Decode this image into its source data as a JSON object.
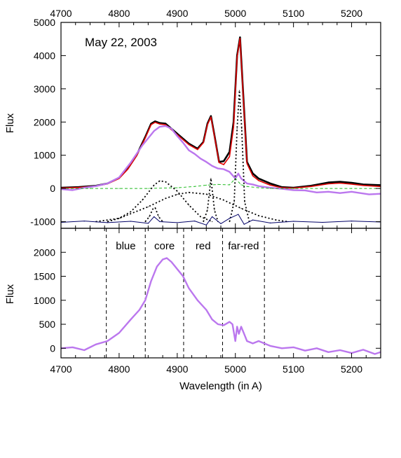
{
  "chart_data": [
    {
      "type": "line",
      "panel": "top",
      "annotation": "May 22, 2003",
      "xlabel": "",
      "ylabel": "Flux",
      "xlim": [
        4700,
        5250
      ],
      "ylim": [
        -1200,
        5000
      ],
      "xticks": [
        4700,
        4800,
        4900,
        5000,
        5100,
        5200
      ],
      "xtick_labels": [
        "4700",
        "4800",
        "4900",
        "5000",
        "5100",
        "5200"
      ],
      "yticks": [
        5000,
        4000,
        3000,
        2000,
        1000,
        0,
        -1000
      ],
      "ytick_labels": [
        "5000",
        "4000",
        "3000",
        "2000",
        "1000",
        "0",
        "-1000"
      ],
      "grid": false,
      "legend": "none",
      "series": [
        {
          "style": "observed",
          "color": "#000000",
          "x": [
            4700,
            4730,
            4760,
            4780,
            4800,
            4815,
            4830,
            4845,
            4855,
            4862,
            4870,
            4880,
            4900,
            4920,
            4935,
            4945,
            4952,
            4958,
            4964,
            4972,
            4980,
            4990,
            4997,
            5003,
            5008,
            5013,
            5020,
            5030,
            5040,
            5060,
            5080,
            5100,
            5130,
            5160,
            5180,
            5200,
            5220,
            5250
          ],
          "y": [
            20,
            40,
            80,
            150,
            320,
            600,
            1000,
            1550,
            1950,
            2020,
            1970,
            1950,
            1650,
            1350,
            1200,
            1400,
            1950,
            2180,
            1600,
            800,
            820,
            1100,
            2000,
            4000,
            4550,
            3000,
            800,
            450,
            300,
            150,
            40,
            20,
            80,
            180,
            200,
            170,
            120,
            100
          ]
        },
        {
          "style": "model-fit",
          "color": "#e00000",
          "x": [
            4700,
            4730,
            4760,
            4780,
            4800,
            4815,
            4830,
            4845,
            4855,
            4862,
            4870,
            4880,
            4900,
            4920,
            4935,
            4945,
            4952,
            4958,
            4964,
            4972,
            4980,
            4990,
            4997,
            5003,
            5008,
            5013,
            5020,
            5030,
            5040,
            5060,
            5080,
            5100,
            5130,
            5160,
            5180,
            5200,
            5220,
            5250
          ],
          "y": [
            10,
            30,
            70,
            140,
            300,
            580,
            980,
            1520,
            1920,
            1990,
            1940,
            1920,
            1620,
            1320,
            1170,
            1380,
            1920,
            2150,
            1580,
            780,
            720,
            960,
            1850,
            3950,
            4520,
            2950,
            750,
            380,
            240,
            100,
            20,
            10,
            60,
            140,
            160,
            130,
            90,
            60
          ]
        },
        {
          "style": "purple-data",
          "color": "#bb77ee",
          "x": [
            4700,
            4720,
            4740,
            4760,
            4780,
            4800,
            4820,
            4840,
            4860,
            4870,
            4880,
            4890,
            4900,
            4910,
            4920,
            4930,
            4940,
            4950,
            4960,
            4970,
            4980,
            4990,
            5000,
            5005,
            5010,
            5020,
            5030,
            5040,
            5060,
            5080,
            5100,
            5120,
            5140,
            5160,
            5180,
            5200,
            5230,
            5250
          ],
          "y": [
            -20,
            -50,
            20,
            70,
            150,
            330,
            780,
            1300,
            1730,
            1860,
            1880,
            1800,
            1580,
            1380,
            1150,
            1040,
            900,
            800,
            680,
            600,
            580,
            500,
            300,
            450,
            300,
            150,
            120,
            70,
            20,
            -10,
            -50,
            -60,
            -120,
            -100,
            -140,
            -100,
            -180,
            -160
          ]
        },
        {
          "style": "green-dashed",
          "color": "#22bb22",
          "x": [
            4700,
            4750,
            4800,
            4850,
            4900,
            4930,
            4950,
            4970,
            4990,
            5000,
            5010,
            5020,
            5040,
            5060,
            5080,
            5100,
            5150,
            5200,
            5250
          ],
          "y": [
            0,
            0,
            0,
            0,
            20,
            60,
            100,
            120,
            110,
            300,
            110,
            60,
            20,
            0,
            0,
            0,
            0,
            0,
            0
          ]
        },
        {
          "style": "component-broad-1",
          "color": "#000000",
          "x": [
            4780,
            4800,
            4820,
            4840,
            4860,
            4870,
            4880,
            4900,
            4920,
            4940,
            4960
          ],
          "y": [
            -1000,
            -900,
            -700,
            -350,
            100,
            230,
            200,
            -80,
            -500,
            -850,
            -1000
          ]
        },
        {
          "style": "component-broad-2",
          "color": "#000000",
          "x": [
            4760,
            4800,
            4850,
            4880,
            4900,
            4920,
            4950,
            4980,
            5010,
            5040,
            5070,
            5090
          ],
          "y": [
            -1000,
            -900,
            -550,
            -300,
            -180,
            -120,
            -170,
            -350,
            -600,
            -820,
            -950,
            -1000
          ]
        },
        {
          "style": "component-hb-narrow",
          "color": "#000000",
          "x": [
            4845,
            4852,
            4858,
            4862,
            4868,
            4875
          ],
          "y": [
            -1000,
            -850,
            -620,
            -580,
            -850,
            -1000
          ]
        },
        {
          "style": "component-o3-4959",
          "color": "#000000",
          "x": [
            4945,
            4952,
            4958,
            4964,
            4970
          ],
          "y": [
            -1000,
            -650,
            300,
            -650,
            -1000
          ]
        },
        {
          "style": "component-o3-5007",
          "color": "#000000",
          "x": [
            4990,
            4998,
            5003,
            5007,
            5011,
            5016,
            5024
          ],
          "y": [
            -1000,
            -400,
            1800,
            2950,
            1800,
            -400,
            -1000
          ]
        },
        {
          "style": "residual",
          "color": "#000066",
          "x": [
            4700,
            4740,
            4780,
            4820,
            4850,
            4860,
            4870,
            4900,
            4930,
            4950,
            4960,
            4975,
            4990,
            5005,
            5015,
            5030,
            5060,
            5100,
            5150,
            5200,
            5250
          ],
          "y": [
            -1020,
            -980,
            -1030,
            -990,
            -1050,
            -850,
            -1000,
            -1030,
            -980,
            -1100,
            -850,
            -1060,
            -900,
            -780,
            -1080,
            -950,
            -1040,
            -990,
            -1020,
            -980,
            -1010
          ]
        }
      ]
    },
    {
      "type": "line",
      "panel": "bottom",
      "xlabel": "Wavelength (in A)",
      "ylabel": "Flux",
      "xlim": [
        4700,
        5250
      ],
      "ylim": [
        -200,
        2500
      ],
      "xticks": [
        4700,
        4800,
        4900,
        5000,
        5100,
        5200
      ],
      "xtick_labels": [
        "4700",
        "4800",
        "4900",
        "5000",
        "5100",
        "5200"
      ],
      "yticks": [
        2000,
        1500,
        1000,
        500,
        0
      ],
      "ytick_labels": [
        "2000",
        "1500",
        "1000",
        "500",
        "0"
      ],
      "grid": false,
      "legend": "none",
      "region_boundaries": [
        4778,
        4845,
        4911,
        4978,
        5050
      ],
      "regions": [
        {
          "label": "blue",
          "from": 4778,
          "to": 4845
        },
        {
          "label": "core",
          "from": 4845,
          "to": 4911
        },
        {
          "label": "red",
          "from": 4911,
          "to": 4978
        },
        {
          "label": "far-red",
          "from": 4978,
          "to": 5050
        }
      ],
      "series": [
        {
          "style": "purple-data",
          "color": "#bb77ee",
          "x": [
            4700,
            4720,
            4740,
            4760,
            4780,
            4800,
            4820,
            4835,
            4845,
            4855,
            4865,
            4875,
            4882,
            4890,
            4900,
            4910,
            4920,
            4935,
            4950,
            4960,
            4970,
            4980,
            4990,
            4995,
            5000,
            5003,
            5006,
            5010,
            5015,
            5020,
            5030,
            5040,
            5060,
            5080,
            5100,
            5120,
            5140,
            5160,
            5180,
            5200,
            5220,
            5240,
            5250
          ],
          "y": [
            0,
            20,
            -40,
            80,
            150,
            320,
            600,
            800,
            1000,
            1400,
            1700,
            1850,
            1880,
            1800,
            1650,
            1500,
            1250,
            1000,
            800,
            600,
            500,
            480,
            550,
            500,
            150,
            450,
            300,
            450,
            300,
            150,
            100,
            150,
            50,
            0,
            20,
            -50,
            0,
            -80,
            -40,
            -100,
            -30,
            -120,
            -80
          ]
        }
      ]
    }
  ]
}
